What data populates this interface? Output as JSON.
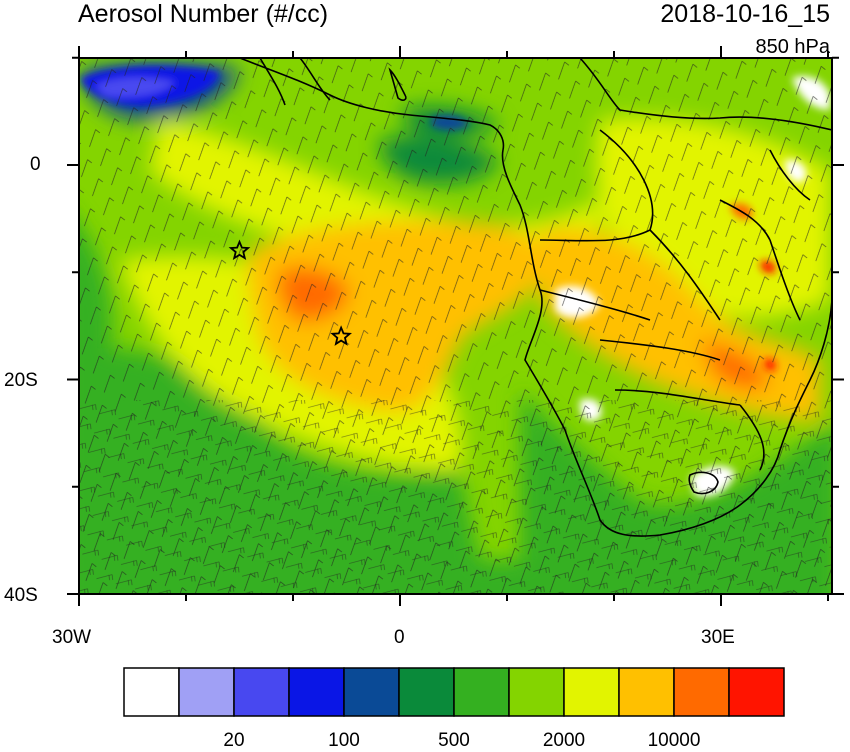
{
  "title": "Aerosol Number (#/cc)",
  "timestamp": "2018-10-16_15",
  "level": "850 hPa",
  "axes": {
    "lat_labels": [
      "0",
      "20S",
      "40S"
    ],
    "lon_labels": [
      "30W",
      "0",
      "30E"
    ]
  },
  "colorbar": {
    "colors": [
      "#ffffff",
      "#a0a0f5",
      "#4848f0",
      "#0a16e6",
      "#0a4a96",
      "#0a8a3a",
      "#34b020",
      "#84d400",
      "#e2f400",
      "#ffc000",
      "#ff6a00",
      "#ff1400"
    ],
    "labels": [
      "20",
      "100",
      "500",
      "2000",
      "10000"
    ]
  },
  "markers": [
    {
      "name": "star-marker-1",
      "lon": -15,
      "lat": -8
    },
    {
      "name": "star-marker-2",
      "lon": -5.5,
      "lat": -16
    }
  ]
}
